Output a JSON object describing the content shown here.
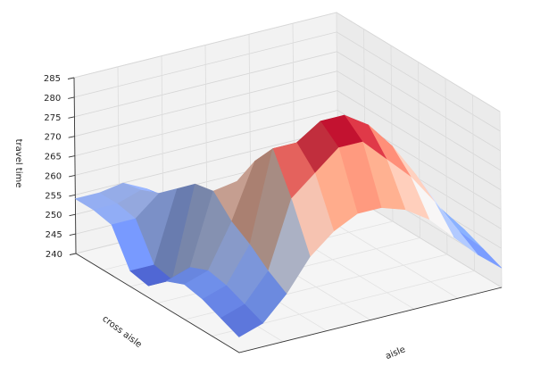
{
  "chart_data": {
    "type": "surface3d",
    "colormap": "coolwarm",
    "zlabel": "travel time",
    "xlabel": "aisle",
    "ylabel": "cross aisle",
    "z_ticks": [
      "240",
      "245",
      "250",
      "255",
      "260",
      "265",
      "270",
      "275",
      "280",
      "285"
    ],
    "zlim": [
      240,
      285
    ],
    "grid": true,
    "surface": {
      "rows": [
        [
          254,
          254,
          255,
          252,
          248,
          246,
          246,
          246,
          246,
          246,
          245,
          244
        ],
        [
          254,
          254,
          256,
          252,
          248,
          247,
          247,
          247,
          247,
          247,
          246,
          244
        ],
        [
          253,
          253,
          258,
          254,
          250,
          249,
          249,
          249,
          249,
          249,
          247,
          245
        ],
        [
          244,
          244,
          262,
          258,
          254,
          254,
          256,
          256,
          256,
          254,
          251,
          246
        ],
        [
          243,
          243,
          266,
          262,
          258,
          258,
          262,
          262,
          262,
          259,
          254,
          248
        ],
        [
          247,
          249,
          267,
          268,
          262,
          262,
          266,
          268,
          268,
          264,
          257,
          250
        ],
        [
          249,
          251,
          262,
          276,
          270,
          270,
          270,
          276,
          276,
          268,
          258,
          250
        ],
        [
          248,
          250,
          259,
          282,
          282,
          286,
          286,
          282,
          275,
          266,
          256,
          249
        ],
        [
          246,
          248,
          255,
          272,
          277,
          282,
          282,
          276,
          270,
          262,
          253,
          247
        ],
        [
          244,
          246,
          252,
          260,
          265,
          268,
          268,
          266,
          262,
          256,
          250,
          245
        ]
      ]
    }
  }
}
